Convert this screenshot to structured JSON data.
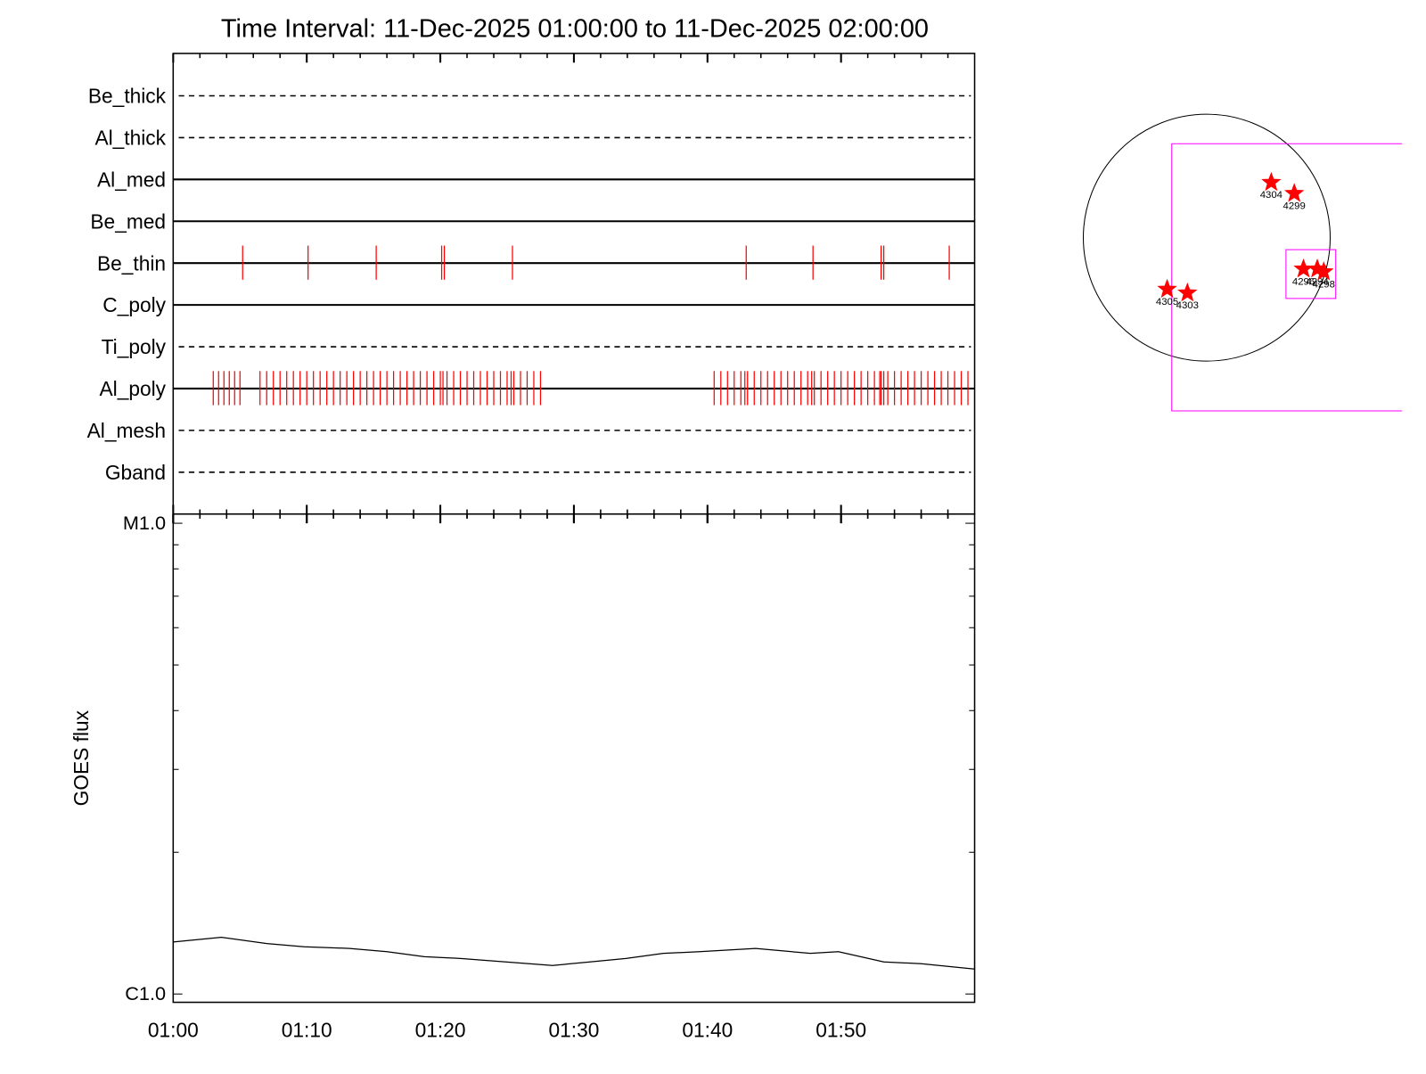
{
  "chart_data": [
    {
      "type": "event",
      "title": "Time Interval: 11-Dec-2025 01:00:00 to 11-Dec-2025 02:00:00",
      "categories": [
        "Be_thick",
        "Al_thick",
        "Al_med",
        "Be_med",
        "Be_thin",
        "C_poly",
        "Ti_poly",
        "Al_poly",
        "Al_mesh",
        "Gband"
      ],
      "line_styles": [
        "dashed",
        "dashed",
        "solid",
        "solid",
        "solid",
        "solid",
        "dashed",
        "solid",
        "dashed",
        "dashed"
      ],
      "events": [
        [],
        [],
        [],
        [],
        [
          5.2,
          10.1,
          15.2,
          20.1,
          20.3,
          25.4,
          42.9,
          47.9,
          53.0,
          53.2,
          58.1
        ],
        [],
        [],
        [
          3.0,
          3.4,
          3.8,
          4.2,
          4.6,
          5.0,
          6.5,
          7.0,
          7.5,
          8.0,
          8.5,
          9.0,
          9.5,
          10.0,
          10.5,
          11.0,
          11.5,
          12.0,
          12.5,
          13.0,
          13.5,
          14.0,
          14.5,
          15.0,
          15.5,
          16.0,
          16.5,
          17.0,
          17.5,
          18.0,
          18.5,
          19.0,
          19.5,
          20.0,
          20.2,
          20.5,
          21.0,
          21.5,
          22.0,
          22.5,
          23.0,
          23.5,
          24.0,
          24.5,
          25.0,
          25.3,
          25.5,
          26.0,
          26.5,
          27.0,
          27.5,
          40.5,
          41.0,
          41.5,
          42.0,
          42.5,
          42.8,
          43.0,
          43.5,
          44.0,
          44.5,
          45.0,
          45.5,
          46.0,
          46.5,
          47.0,
          47.5,
          47.8,
          48.0,
          48.5,
          49.0,
          49.5,
          50.0,
          50.5,
          51.0,
          51.5,
          52.0,
          52.5,
          52.9,
          53.0,
          53.2,
          53.5,
          54.0,
          54.5,
          55.0,
          55.5,
          56.0,
          56.5,
          57.0,
          57.5,
          58.0,
          58.5,
          59.0,
          59.5
        ],
        [],
        []
      ],
      "color": "#ff0000",
      "xlim": [
        0,
        60
      ],
      "tick_marks": [
        0,
        10,
        20,
        30,
        40,
        50
      ],
      "minor_tick_marks": [
        2,
        4,
        6,
        8,
        12,
        14,
        16,
        18,
        22,
        24,
        26,
        28,
        32,
        34,
        36,
        38,
        42,
        44,
        46,
        48,
        52,
        54,
        56,
        58
      ]
    },
    {
      "type": "line",
      "ylabel": "GOES flux",
      "x": [
        0,
        3.6,
        7.0,
        9.8,
        13.2,
        16.0,
        18.8,
        21.5,
        24.9,
        28.4,
        31.2,
        33.9,
        36.7,
        39.4,
        43.6,
        47.7,
        49.8,
        53.2,
        56.0,
        60
      ],
      "values": [
        1.29e-06,
        1.32e-06,
        1.28e-06,
        1.26e-06,
        1.25e-06,
        1.23e-06,
        1.2e-06,
        1.19e-06,
        1.17e-06,
        1.15e-06,
        1.17e-06,
        1.19e-06,
        1.22e-06,
        1.23e-06,
        1.25e-06,
        1.22e-06,
        1.23e-06,
        1.17e-06,
        1.16e-06,
        1.13e-06
      ],
      "color": "#000000",
      "log_y": true,
      "xlim": [
        0,
        60
      ],
      "xticks": [
        {
          "value": 0,
          "label": "01:00"
        },
        {
          "value": 10,
          "label": "01:10"
        },
        {
          "value": 20,
          "label": "01:20"
        },
        {
          "value": 30,
          "label": "01:30"
        },
        {
          "value": 40,
          "label": "01:40"
        },
        {
          "value": 50,
          "label": "01:50"
        }
      ],
      "minor_xticks": [
        2,
        4,
        6,
        8,
        12,
        14,
        16,
        18,
        22,
        24,
        26,
        28,
        32,
        34,
        36,
        38,
        42,
        44,
        46,
        48,
        52,
        54,
        56,
        58
      ],
      "ylim": [
        1e-06,
        1e-05
      ],
      "yticks": [
        {
          "value": 1e-06,
          "label": "C1.0"
        },
        {
          "value": 1e-05,
          "label": "M1.0"
        }
      ],
      "minor_yticks": [
        2e-06,
        3e-06,
        4e-06,
        5e-06,
        6e-06,
        7e-06,
        8e-06,
        9e-06
      ]
    }
  ],
  "map": {
    "regions": [
      {
        "label": "4304"
      },
      {
        "label": "4299"
      },
      {
        "label": "4305"
      },
      {
        "label": "4303"
      },
      {
        "label": "4296"
      },
      {
        "label": "4294"
      },
      {
        "label": "4298"
      }
    ]
  }
}
